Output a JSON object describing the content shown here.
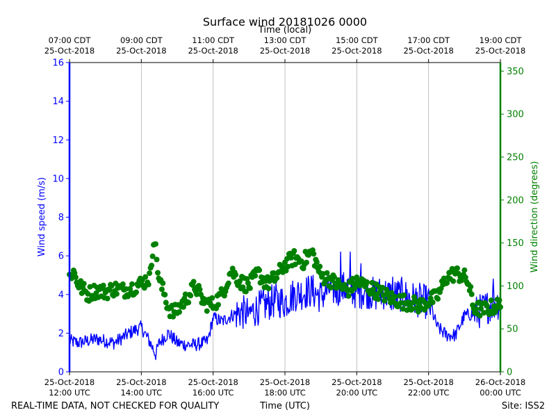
{
  "chart_data": {
    "type": "line",
    "title": "Surface wind 20181026 0000",
    "xlabel_bottom": "Time (UTC)",
    "xlabel_top": "Time (local)",
    "ylabel_left": "Wind speed (m/s)",
    "ylabel_right": "Wind direction (degrees)",
    "ylim_left": [
      0,
      16
    ],
    "ylim_right": [
      0,
      360
    ],
    "xlim_hours_utc": [
      12,
      24
    ],
    "yticks_left": [
      "0",
      "2",
      "4",
      "6",
      "8",
      "10",
      "12",
      "14",
      "16"
    ],
    "yticks_right": [
      "0",
      "50",
      "100",
      "150",
      "200",
      "250",
      "300",
      "350"
    ],
    "xticks_bottom": [
      {
        "hour": 12,
        "date": "25-Oct-2018",
        "time": "12:00 UTC"
      },
      {
        "hour": 14,
        "date": "25-Oct-2018",
        "time": "14:00 UTC"
      },
      {
        "hour": 16,
        "date": "25-Oct-2018",
        "time": "16:00 UTC"
      },
      {
        "hour": 18,
        "date": "25-Oct-2018",
        "time": "18:00 UTC"
      },
      {
        "hour": 20,
        "date": "25-Oct-2018",
        "time": "20:00 UTC"
      },
      {
        "hour": 22,
        "date": "25-Oct-2018",
        "time": "22:00 UTC"
      },
      {
        "hour": 24,
        "date": "26-Oct-2018",
        "time": "00:00 UTC"
      }
    ],
    "xticks_top": [
      {
        "hour": 12,
        "time": "07:00 CDT",
        "date": "25-Oct-2018"
      },
      {
        "hour": 14,
        "time": "09:00 CDT",
        "date": "25-Oct-2018"
      },
      {
        "hour": 16,
        "time": "11:00 CDT",
        "date": "25-Oct-2018"
      },
      {
        "hour": 18,
        "time": "13:00 CDT",
        "date": "25-Oct-2018"
      },
      {
        "hour": 20,
        "time": "15:00 CDT",
        "date": "25-Oct-2018"
      },
      {
        "hour": 22,
        "time": "17:00 CDT",
        "date": "25-Oct-2018"
      },
      {
        "hour": 24,
        "time": "19:00 CDT",
        "date": "25-Oct-2018"
      }
    ],
    "series": [
      {
        "name": "Wind speed",
        "axis": "left",
        "style": "line",
        "color": "#0000ff",
        "x_hours": [
          12.0,
          12.25,
          12.5,
          12.75,
          13.0,
          13.25,
          13.5,
          13.75,
          14.0,
          14.25,
          14.4,
          14.5,
          14.75,
          15.0,
          15.25,
          15.5,
          15.75,
          15.85,
          16.0,
          16.25,
          16.5,
          16.75,
          17.0,
          17.25,
          17.5,
          17.75,
          18.0,
          18.25,
          18.5,
          18.75,
          19.0,
          19.25,
          19.5,
          19.75,
          20.0,
          20.25,
          20.5,
          20.75,
          21.0,
          21.25,
          21.5,
          21.75,
          22.0,
          22.25,
          22.5,
          22.75,
          23.0,
          23.25,
          23.5,
          23.75,
          24.0
        ],
        "values": [
          1.6,
          1.5,
          1.6,
          1.7,
          1.6,
          1.5,
          1.8,
          2.1,
          2.3,
          1.5,
          0.9,
          1.5,
          2.0,
          1.5,
          1.4,
          1.4,
          1.5,
          1.6,
          2.8,
          2.6,
          2.9,
          3.1,
          3.0,
          3.3,
          3.5,
          3.7,
          3.6,
          4.0,
          4.1,
          4.2,
          3.9,
          4.3,
          4.2,
          4.4,
          4.1,
          4.2,
          4.0,
          4.1,
          3.9,
          4.0,
          3.8,
          3.7,
          3.6,
          2.3,
          1.9,
          1.9,
          2.9,
          3.0,
          3.2,
          3.5,
          3.6
        ],
        "spikes": [
          {
            "x": 19.55,
            "value": 6.2
          },
          {
            "x": 19.82,
            "value": 6.2
          },
          {
            "x": 20.12,
            "value": 5.6
          },
          {
            "x": 21.0,
            "value": 4.9
          },
          {
            "x": 23.8,
            "value": 4.8
          }
        ]
      },
      {
        "name": "Wind direction",
        "axis": "right",
        "style": "markers",
        "color": "#008000",
        "x_hours": [
          12.0,
          12.1,
          12.25,
          12.5,
          12.75,
          13.0,
          13.25,
          13.5,
          13.75,
          14.0,
          14.25,
          14.35,
          14.5,
          14.65,
          14.75,
          14.9,
          15.0,
          15.25,
          15.5,
          15.75,
          16.0,
          16.25,
          16.5,
          16.75,
          17.0,
          17.25,
          17.5,
          17.75,
          18.0,
          18.25,
          18.5,
          18.75,
          19.0,
          19.25,
          19.5,
          19.75,
          20.0,
          20.25,
          20.5,
          20.75,
          21.0,
          21.25,
          21.5,
          21.75,
          22.0,
          22.25,
          22.5,
          22.75,
          23.0,
          23.1,
          23.25,
          23.5,
          23.75,
          24.0
        ],
        "values": [
          110,
          118,
          102,
          90,
          95,
          93,
          97,
          95,
          98,
          103,
          110,
          160,
          105,
          90,
          75,
          68,
          72,
          85,
          100,
          80,
          78,
          90,
          118,
          105,
          100,
          115,
          102,
          110,
          125,
          133,
          128,
          140,
          112,
          108,
          100,
          95,
          105,
          100,
          95,
          90,
          85,
          82,
          80,
          77,
          82,
          88,
          110,
          115,
          110,
          105,
          75,
          72,
          75,
          78
        ]
      }
    ],
    "footer_left": "REAL-TIME DATA, NOT CHECKED FOR QUALITY",
    "footer_center": "Time (UTC)",
    "footer_right": "Site: ISS2",
    "colors": {
      "speed_axis": "#0000ff",
      "direction_axis": "#008000",
      "grid": "#b0b0b0",
      "text": "#000000"
    }
  }
}
